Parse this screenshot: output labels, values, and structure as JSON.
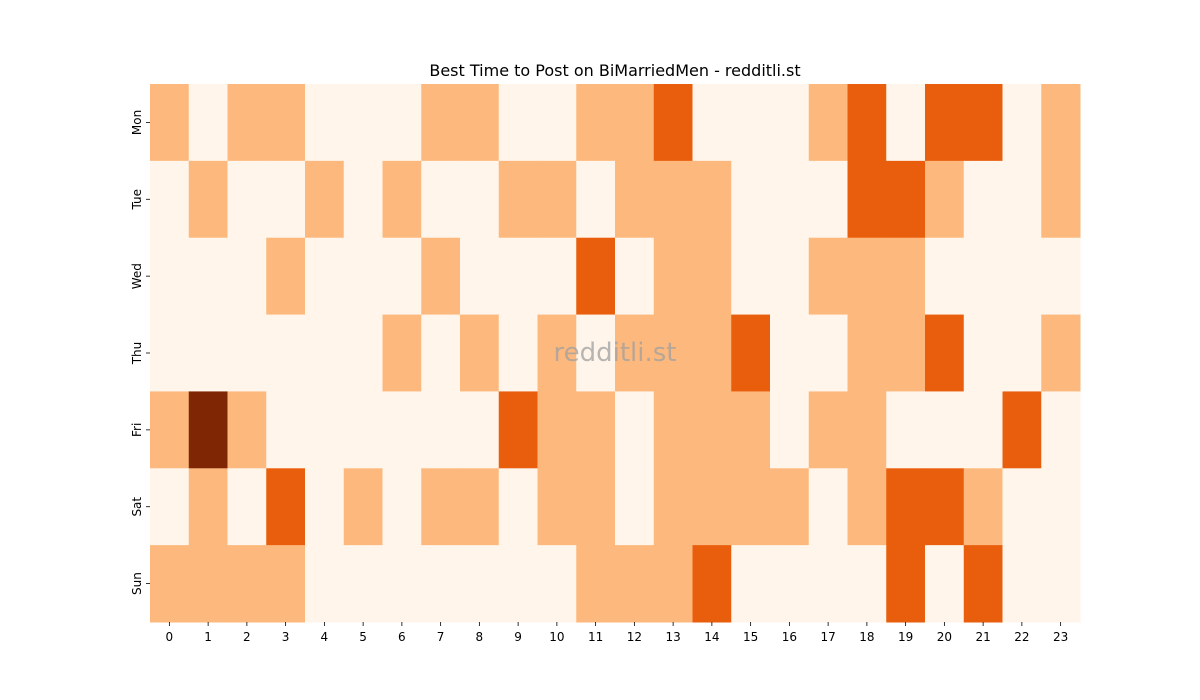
{
  "chart_data": {
    "type": "heatmap",
    "title": "Best Time to Post on BiMarriedMen - redditli.st",
    "watermark": "redditli.st",
    "xlabel": "",
    "ylabel": "",
    "x": [
      "0",
      "1",
      "2",
      "3",
      "4",
      "5",
      "6",
      "7",
      "8",
      "9",
      "10",
      "11",
      "12",
      "13",
      "14",
      "15",
      "16",
      "17",
      "18",
      "19",
      "20",
      "21",
      "22",
      "23"
    ],
    "y": [
      "Mon",
      "Tue",
      "Wed",
      "Thu",
      "Fri",
      "Sat",
      "Sun"
    ],
    "values": [
      [
        1,
        0,
        1,
        1,
        0,
        0,
        0,
        1,
        1,
        0,
        0,
        1,
        1,
        2,
        0,
        0,
        0,
        1,
        2,
        0,
        2,
        2,
        0,
        1
      ],
      [
        0,
        1,
        0,
        0,
        1,
        0,
        1,
        0,
        0,
        1,
        1,
        0,
        1,
        1,
        1,
        0,
        0,
        0,
        2,
        2,
        1,
        0,
        0,
        1
      ],
      [
        0,
        0,
        0,
        1,
        0,
        0,
        0,
        1,
        0,
        0,
        0,
        2,
        0,
        1,
        1,
        0,
        0,
        1,
        1,
        1,
        0,
        0,
        0,
        0
      ],
      [
        0,
        0,
        0,
        0,
        0,
        0,
        1,
        0,
        1,
        0,
        1,
        0,
        1,
        1,
        1,
        2,
        0,
        0,
        1,
        1,
        2,
        0,
        0,
        1
      ],
      [
        1,
        3,
        1,
        0,
        0,
        0,
        0,
        0,
        0,
        2,
        1,
        1,
        0,
        1,
        1,
        1,
        0,
        1,
        1,
        0,
        0,
        0,
        2,
        0
      ],
      [
        0,
        1,
        0,
        2,
        0,
        1,
        0,
        1,
        1,
        0,
        1,
        1,
        0,
        1,
        1,
        1,
        1,
        0,
        1,
        2,
        2,
        1,
        0,
        0
      ],
      [
        1,
        1,
        1,
        1,
        0,
        0,
        0,
        0,
        0,
        0,
        0,
        1,
        1,
        1,
        2,
        0,
        0,
        0,
        0,
        2,
        0,
        2,
        0,
        0
      ]
    ],
    "colors": {
      "0": "#fff5eb",
      "1": "#fdb97d",
      "2": "#e95e0d",
      "3": "#7f2704"
    },
    "grid": false,
    "legend": "none"
  }
}
